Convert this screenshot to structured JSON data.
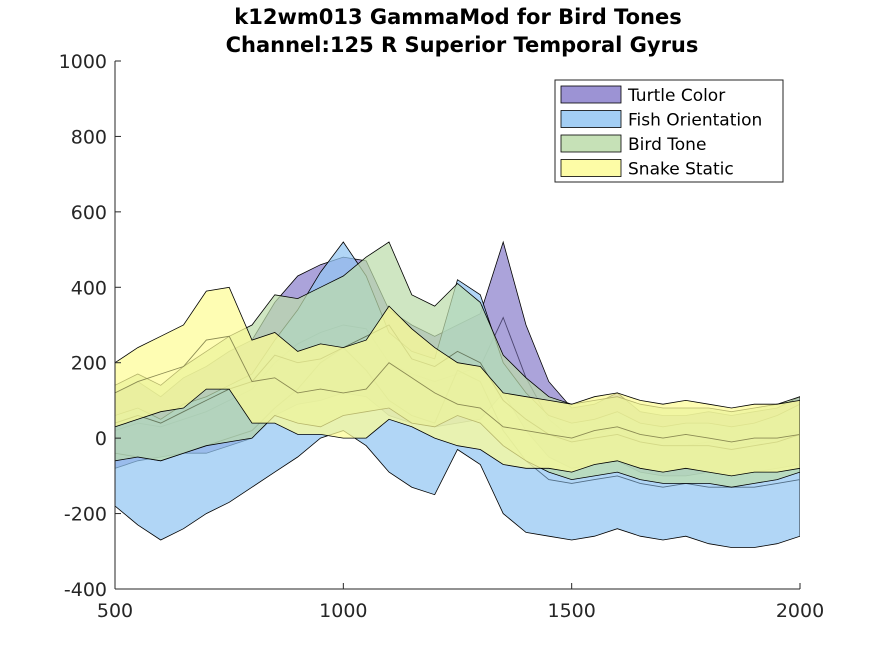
{
  "chart_data": {
    "type": "area",
    "title": "k12wm013 GammaMod for Bird Tones",
    "subtitle": "Channel:125 R Superior Temporal Gyrus",
    "xlabel": "",
    "ylabel": "",
    "xlim": [
      500,
      2000
    ],
    "ylim": [
      -400,
      1000
    ],
    "xticks": [
      500,
      1000,
      1500,
      2000
    ],
    "yticks": [
      -400,
      -200,
      0,
      200,
      400,
      600,
      800,
      1000
    ],
    "legend_position": "top-right",
    "grid": false,
    "x": [
      500,
      550,
      600,
      650,
      700,
      750,
      800,
      850,
      900,
      950,
      1000,
      1050,
      1100,
      1150,
      1200,
      1250,
      1300,
      1350,
      1400,
      1450,
      1500,
      1550,
      1600,
      1650,
      1700,
      1750,
      1800,
      1850,
      1900,
      1950,
      2000
    ],
    "series": [
      {
        "name": "Turtle Color",
        "color": "#8b80cc",
        "upper": [
          120,
          150,
          110,
          160,
          190,
          230,
          260,
          360,
          430,
          460,
          480,
          470,
          340,
          300,
          270,
          300,
          330,
          520,
          300,
          150,
          80,
          90,
          120,
          70,
          60,
          60,
          70,
          60,
          70,
          80,
          110
        ],
        "mean": [
          20,
          40,
          30,
          50,
          70,
          100,
          130,
          200,
          250,
          280,
          300,
          290,
          200,
          170,
          150,
          170,
          190,
          320,
          160,
          50,
          0,
          10,
          30,
          -10,
          -20,
          -20,
          -10,
          -20,
          -10,
          0,
          20
        ],
        "lower": [
          -80,
          -60,
          -50,
          -40,
          -40,
          -20,
          0,
          60,
          90,
          100,
          120,
          110,
          60,
          40,
          30,
          40,
          50,
          120,
          20,
          -50,
          -80,
          -70,
          -60,
          -90,
          -100,
          -100,
          -90,
          -100,
          -90,
          -80,
          -70
        ]
      },
      {
        "name": "Fish Orientation",
        "color": "#93c6f2",
        "upper": [
          60,
          80,
          50,
          90,
          110,
          140,
          170,
          260,
          340,
          440,
          520,
          430,
          280,
          230,
          210,
          420,
          380,
          200,
          120,
          60,
          40,
          50,
          70,
          40,
          30,
          40,
          40,
          30,
          40,
          60,
          90
        ],
        "mean": [
          -40,
          -50,
          -60,
          -40,
          -20,
          0,
          20,
          80,
          130,
          200,
          240,
          180,
          100,
          60,
          40,
          180,
          150,
          20,
          -60,
          -110,
          -120,
          -110,
          -100,
          -120,
          -130,
          -120,
          -130,
          -130,
          -130,
          -120,
          -110
        ],
        "lower": [
          -180,
          -230,
          -270,
          -240,
          -200,
          -170,
          -130,
          -90,
          -50,
          0,
          20,
          -20,
          -90,
          -130,
          -150,
          -30,
          -70,
          -200,
          -250,
          -260,
          -270,
          -260,
          -240,
          -260,
          -270,
          -260,
          -280,
          -290,
          -290,
          -280,
          -260
        ]
      },
      {
        "name": "Bird Tone",
        "color": "#bcdcaa",
        "upper": [
          140,
          170,
          140,
          190,
          230,
          270,
          300,
          380,
          370,
          400,
          430,
          480,
          520,
          380,
          350,
          410,
          360,
          220,
          160,
          110,
          90,
          100,
          110,
          90,
          80,
          80,
          80,
          70,
          80,
          90,
          110
        ],
        "mean": [
          40,
          60,
          40,
          70,
          100,
          130,
          150,
          220,
          200,
          210,
          240,
          270,
          300,
          210,
          190,
          230,
          200,
          100,
          50,
          10,
          -10,
          0,
          10,
          -10,
          -20,
          -20,
          -20,
          -30,
          -20,
          -10,
          10
        ],
        "lower": [
          -60,
          -50,
          -60,
          -40,
          -20,
          -10,
          0,
          60,
          40,
          30,
          60,
          70,
          80,
          40,
          30,
          60,
          40,
          -20,
          -60,
          -90,
          -110,
          -100,
          -90,
          -110,
          -120,
          -120,
          -120,
          -130,
          -120,
          -110,
          -90
        ]
      },
      {
        "name": "Snake Static",
        "color": "#fdfc96",
        "upper": [
          200,
          240,
          270,
          300,
          390,
          400,
          260,
          280,
          230,
          250,
          240,
          260,
          350,
          290,
          240,
          200,
          190,
          120,
          110,
          100,
          90,
          110,
          120,
          100,
          90,
          100,
          90,
          80,
          90,
          90,
          100
        ],
        "mean": [
          120,
          150,
          170,
          190,
          260,
          270,
          150,
          160,
          120,
          130,
          120,
          130,
          200,
          160,
          120,
          90,
          80,
          30,
          20,
          10,
          0,
          20,
          30,
          10,
          0,
          10,
          0,
          -10,
          0,
          0,
          10
        ],
        "lower": [
          30,
          50,
          70,
          80,
          130,
          130,
          40,
          40,
          10,
          10,
          0,
          0,
          50,
          30,
          0,
          -20,
          -30,
          -70,
          -80,
          -80,
          -90,
          -70,
          -60,
          -80,
          -90,
          -80,
          -90,
          -100,
          -90,
          -90,
          -80
        ]
      }
    ]
  }
}
